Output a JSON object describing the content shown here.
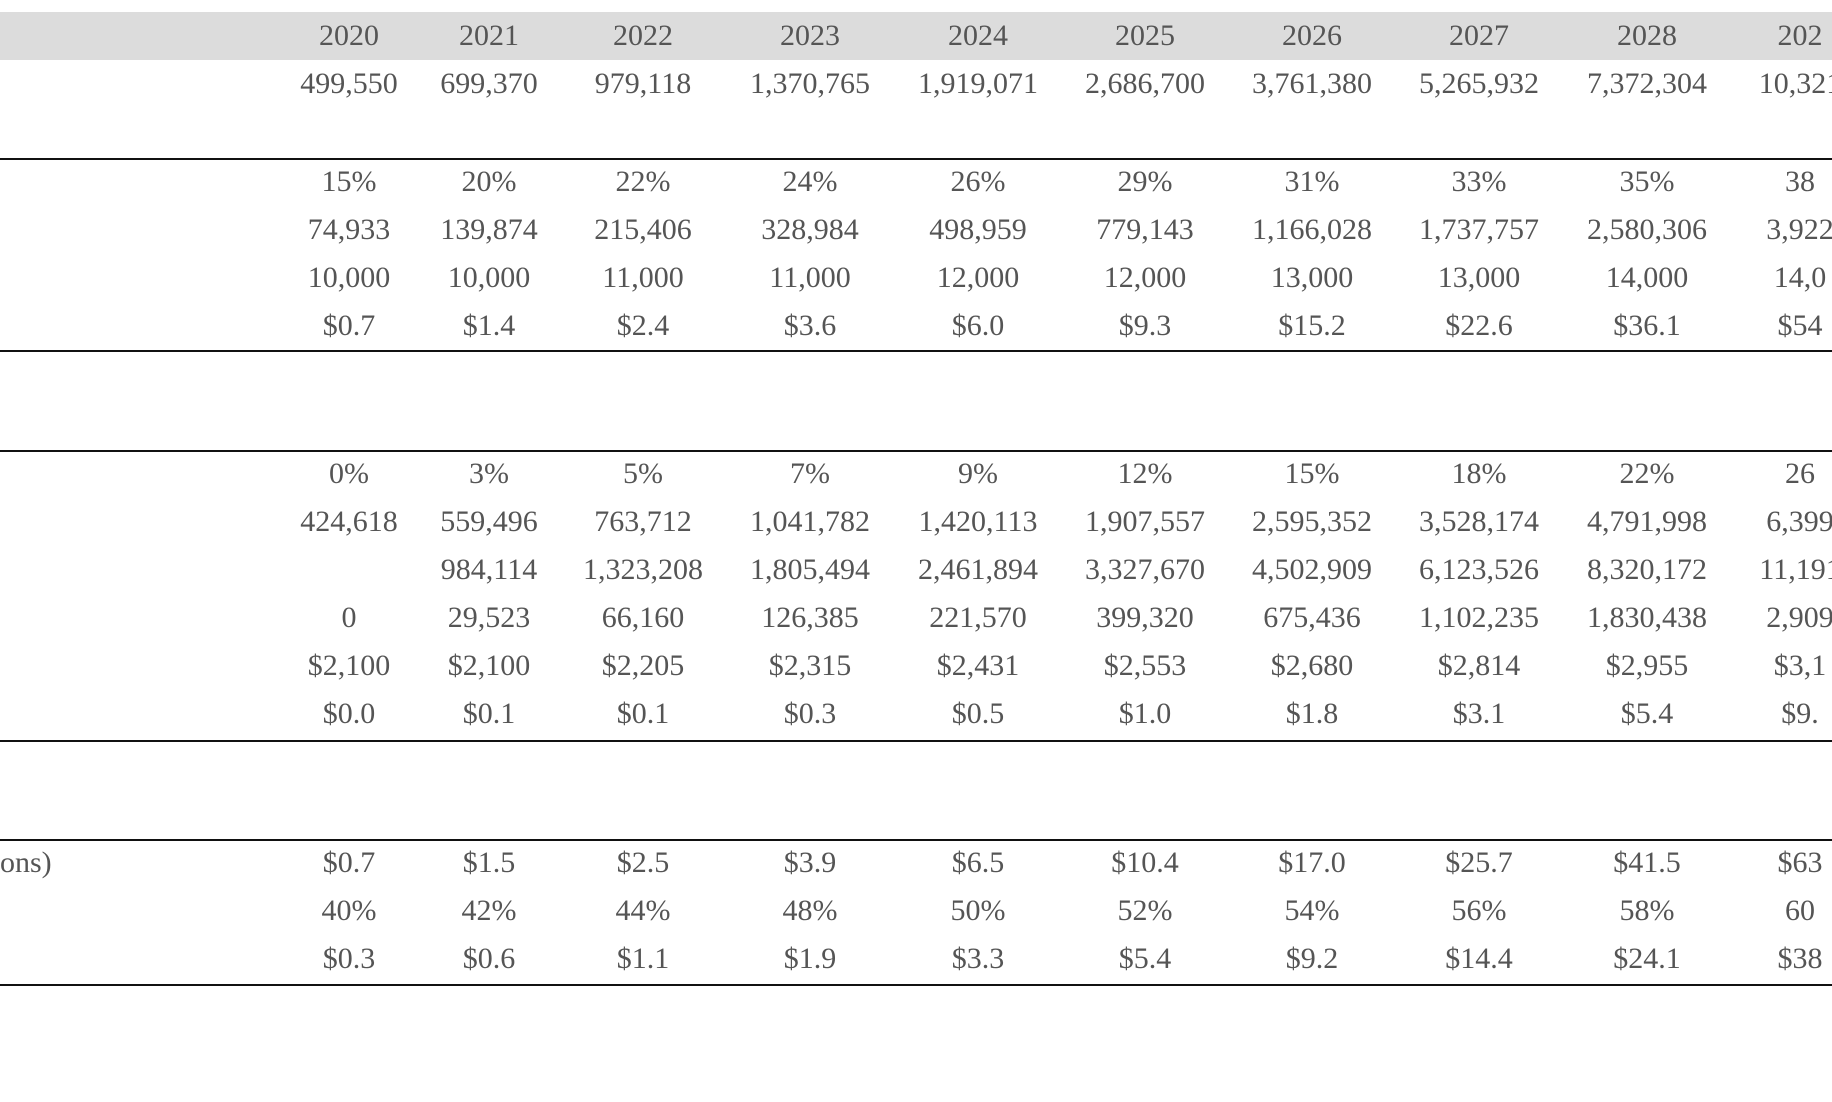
{
  "years": [
    "2020",
    "2021",
    "2022",
    "2023",
    "2024",
    "2025",
    "2026",
    "2027",
    "2028",
    "202"
  ],
  "sections": [
    {
      "rows": [
        {
          "label": "",
          "values": [
            "499,550",
            "699,370",
            "979,118",
            "1,370,765",
            "1,919,071",
            "2,686,700",
            "3,761,380",
            "5,265,932",
            "7,372,304",
            "10,321"
          ]
        }
      ]
    },
    {
      "rows": [
        {
          "label": "",
          "values": [
            "15%",
            "20%",
            "22%",
            "24%",
            "26%",
            "29%",
            "31%",
            "33%",
            "35%",
            "38"
          ]
        },
        {
          "label": "",
          "values": [
            "74,933",
            "139,874",
            "215,406",
            "328,984",
            "498,959",
            "779,143",
            "1,166,028",
            "1,737,757",
            "2,580,306",
            "3,922"
          ]
        },
        {
          "label": "",
          "values": [
            "10,000",
            "10,000",
            "11,000",
            "11,000",
            "12,000",
            "12,000",
            "13,000",
            "13,000",
            "14,000",
            "14,0"
          ]
        },
        {
          "label": "",
          "values": [
            "$0.7",
            "$1.4",
            "$2.4",
            "$3.6",
            "$6.0",
            "$9.3",
            "$15.2",
            "$22.6",
            "$36.1",
            "$54"
          ]
        }
      ]
    },
    {
      "rows": [
        {
          "label": "",
          "values": [
            "0%",
            "3%",
            "5%",
            "7%",
            "9%",
            "12%",
            "15%",
            "18%",
            "22%",
            "26"
          ]
        },
        {
          "label": "",
          "values": [
            "424,618",
            "559,496",
            "763,712",
            "1,041,782",
            "1,420,113",
            "1,907,557",
            "2,595,352",
            "3,528,174",
            "4,791,998",
            "6,399"
          ]
        },
        {
          "label": "",
          "values": [
            "",
            "984,114",
            "1,323,208",
            "1,805,494",
            "2,461,894",
            "3,327,670",
            "4,502,909",
            "6,123,526",
            "8,320,172",
            "11,191"
          ]
        },
        {
          "label": "",
          "values": [
            "0",
            "29,523",
            "66,160",
            "126,385",
            "221,570",
            "399,320",
            "675,436",
            "1,102,235",
            "1,830,438",
            "2,909"
          ]
        },
        {
          "label": "",
          "values": [
            "$2,100",
            "$2,100",
            "$2,205",
            "$2,315",
            "$2,431",
            "$2,553",
            "$2,680",
            "$2,814",
            "$2,955",
            "$3,1"
          ]
        },
        {
          "label": "",
          "values": [
            "$0.0",
            "$0.1",
            "$0.1",
            "$0.3",
            "$0.5",
            "$1.0",
            "$1.8",
            "$3.1",
            "$5.4",
            "$9."
          ]
        }
      ]
    },
    {
      "rows": [
        {
          "label": "ons)",
          "values": [
            "$0.7",
            "$1.5",
            "$2.5",
            "$3.9",
            "$6.5",
            "$10.4",
            "$17.0",
            "$25.7",
            "$41.5",
            "$63"
          ]
        },
        {
          "label": "",
          "values": [
            "40%",
            "42%",
            "44%",
            "48%",
            "50%",
            "52%",
            "54%",
            "56%",
            "58%",
            "60"
          ]
        },
        {
          "label": "",
          "values": [
            "$0.3",
            "$0.6",
            "$1.1",
            "$1.9",
            "$3.3",
            "$5.4",
            "$9.2",
            "$14.4",
            "$24.1",
            "$38"
          ]
        }
      ]
    }
  ]
}
